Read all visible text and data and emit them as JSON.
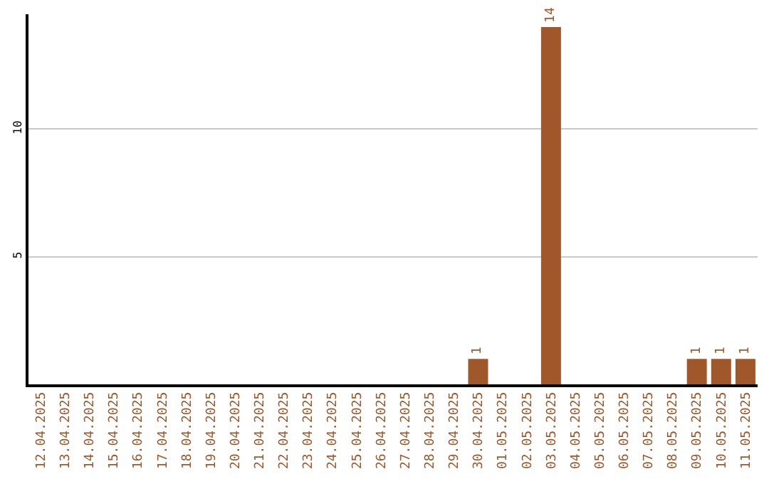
{
  "chart_data": {
    "type": "bar",
    "categories": [
      "12.04.2025",
      "13.04.2025",
      "14.04.2025",
      "15.04.2025",
      "16.04.2025",
      "17.04.2025",
      "18.04.2025",
      "19.04.2025",
      "20.04.2025",
      "21.04.2025",
      "22.04.2025",
      "23.04.2025",
      "24.04.2025",
      "25.04.2025",
      "26.04.2025",
      "27.04.2025",
      "28.04.2025",
      "29.04.2025",
      "30.04.2025",
      "01.05.2025",
      "02.05.2025",
      "03.05.2025",
      "04.05.2025",
      "05.05.2025",
      "06.05.2025",
      "07.05.2025",
      "08.05.2025",
      "09.05.2025",
      "10.05.2025",
      "11.05.2025"
    ],
    "values": [
      0,
      0,
      0,
      0,
      0,
      0,
      0,
      0,
      0,
      0,
      0,
      0,
      0,
      0,
      0,
      0,
      0,
      0,
      1,
      0,
      0,
      14,
      0,
      0,
      0,
      0,
      0,
      1,
      1,
      1
    ],
    "value_labels": [
      null,
      null,
      null,
      null,
      null,
      null,
      null,
      null,
      null,
      null,
      null,
      null,
      null,
      null,
      null,
      null,
      null,
      null,
      "1",
      null,
      null,
      "14",
      null,
      null,
      null,
      null,
      null,
      "1",
      "1",
      "1"
    ],
    "color": "#a0572a",
    "ylim": [
      0,
      14.5
    ],
    "yticks": [
      5,
      10
    ],
    "grid": "y"
  }
}
